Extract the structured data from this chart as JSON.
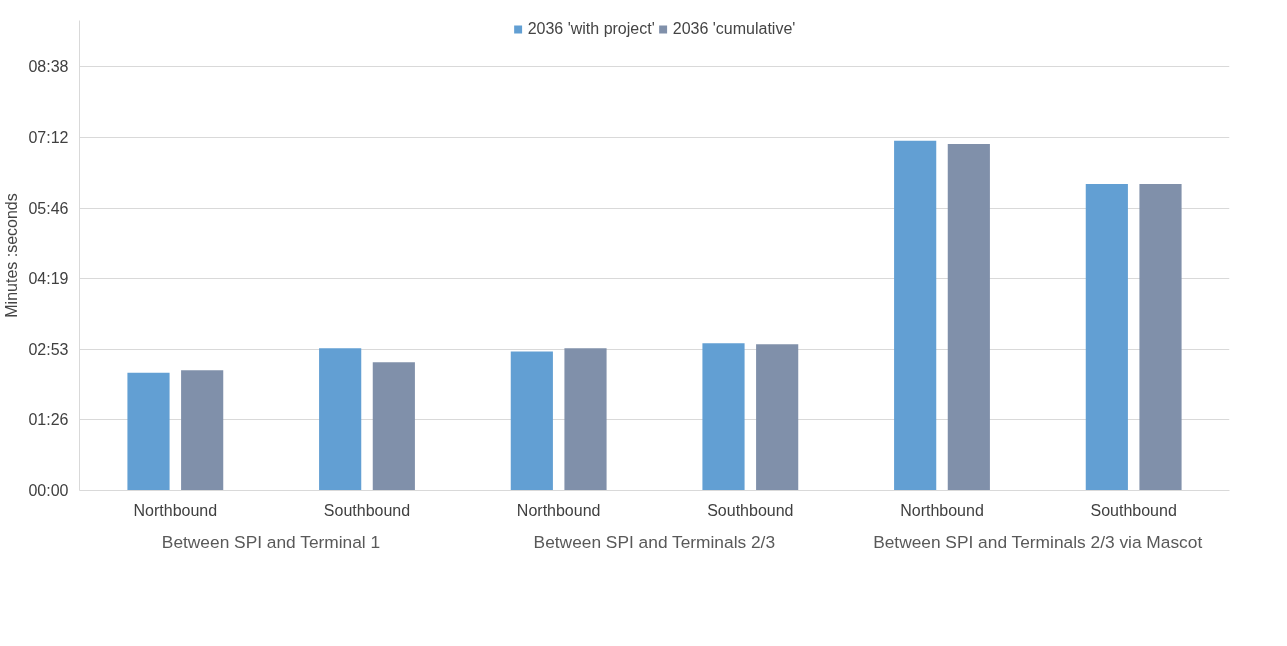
{
  "chart_data": {
    "type": "bar",
    "ylabel": "Minutes :seconds",
    "categories": [
      "Northbound",
      "Southbound",
      "Northbound",
      "Southbound",
      "Northbound",
      "Southbound"
    ],
    "series": [
      {
        "name": "2036 'with project'",
        "color": "#629fd3",
        "values": [
          144,
          174,
          170,
          180,
          428,
          375
        ]
      },
      {
        "name": "2036 'cumulative'",
        "color": "#8090aa",
        "values": [
          147,
          157,
          174,
          179,
          424,
          375
        ]
      }
    ],
    "ylim": [
      0,
      575
    ],
    "yticks": [
      {
        "value": 0,
        "label": "00:00"
      },
      {
        "value": 86.4,
        "label": "01:26"
      },
      {
        "value": 172.8,
        "label": "02:53"
      },
      {
        "value": 259.2,
        "label": "04:19"
      },
      {
        "value": 345.6,
        "label": "05:46"
      },
      {
        "value": 432,
        "label": "07:12"
      },
      {
        "value": 518.4,
        "label": "08:38"
      }
    ],
    "annotations": [
      "Between SPI and Terminal 1",
      "Between SPI and Terminals 2/3",
      "Between SPI and Terminals 2/3 via Mascot"
    ],
    "grid": "y",
    "legend": "top"
  }
}
